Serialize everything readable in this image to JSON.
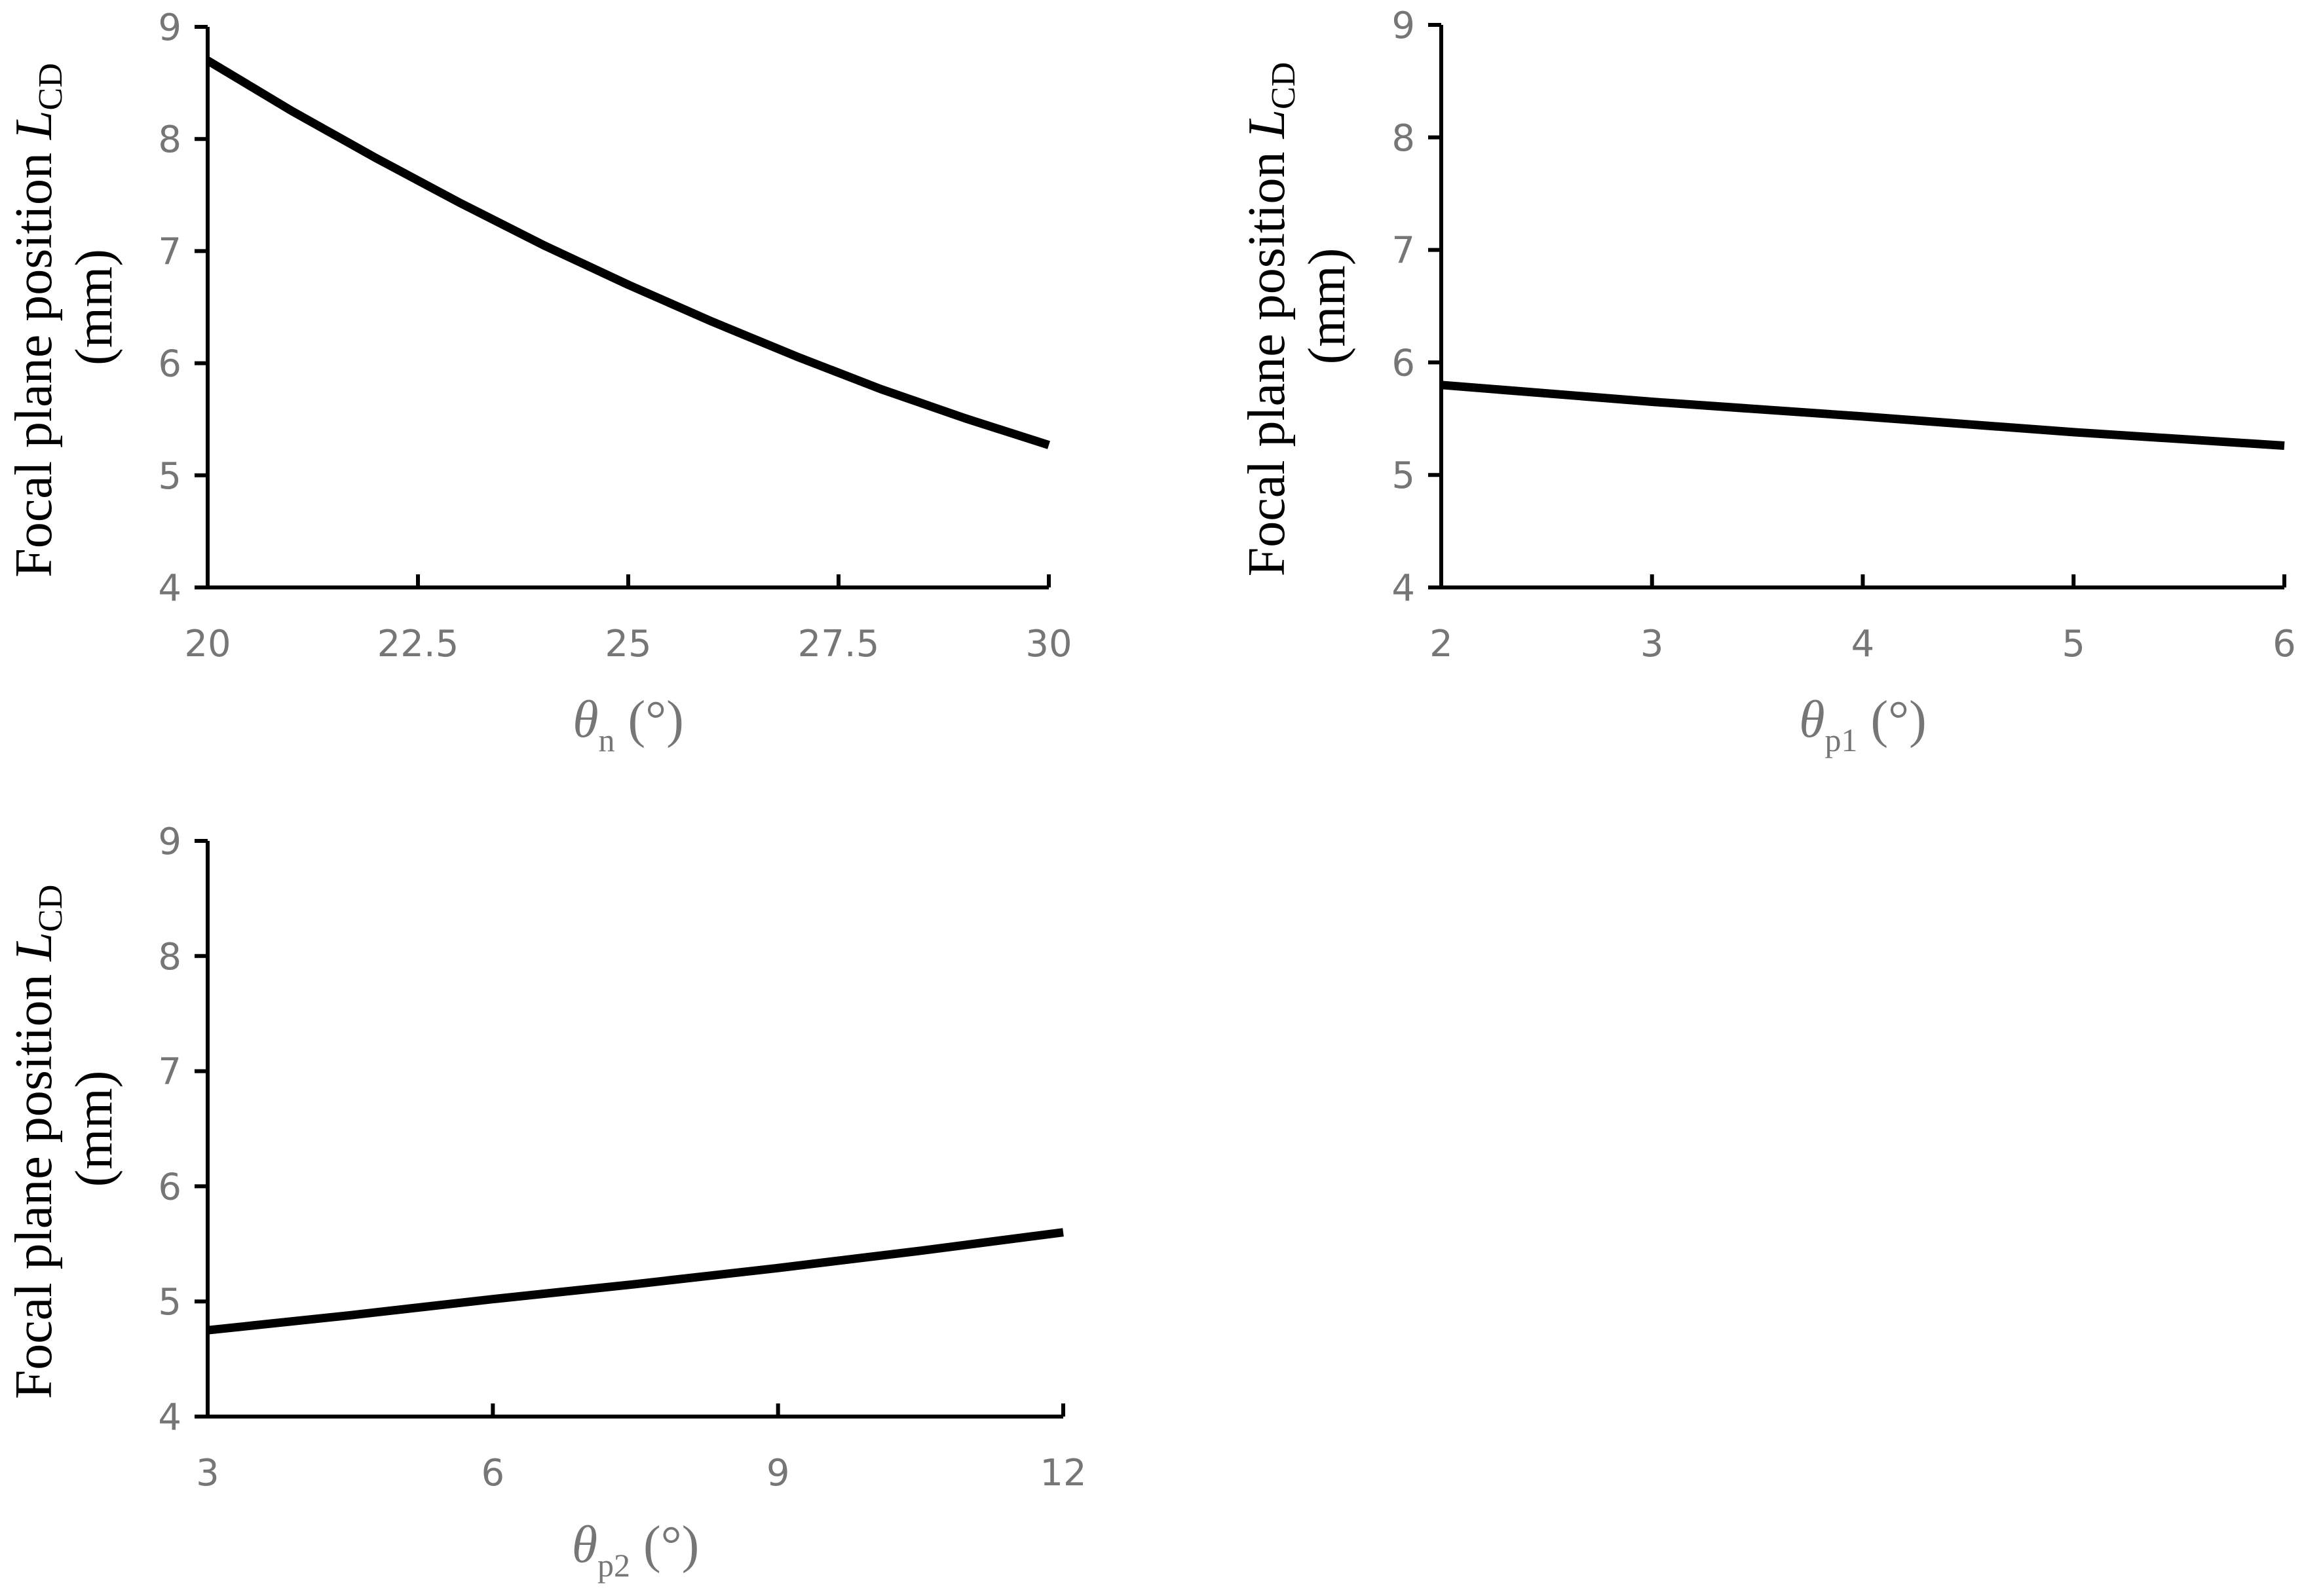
{
  "chart_data": [
    {
      "type": "line",
      "title": "",
      "xlabel": {
        "symbol": "θ",
        "subscript": "n",
        "unit": " (°)"
      },
      "ylabel": {
        "line1_prefix": "Focal plane position ",
        "line1_symbol": "L",
        "line1_subscript": "CD",
        "line2": "(mm)"
      },
      "xlim": [
        20,
        30
      ],
      "ylim": [
        4,
        9
      ],
      "x_ticks": [
        "20",
        "22.5",
        "25",
        "27.5",
        "30"
      ],
      "y_ticks": [
        "4",
        "5",
        "6",
        "7",
        "8",
        "9"
      ],
      "grid": false,
      "legend": "none",
      "series": [
        {
          "color": "#000000",
          "x": [
            20,
            21,
            22,
            23,
            24,
            25,
            26,
            27,
            28,
            29,
            30
          ],
          "y": [
            8.7,
            8.25,
            7.83,
            7.43,
            7.05,
            6.7,
            6.37,
            6.06,
            5.77,
            5.51,
            5.27
          ]
        }
      ]
    },
    {
      "type": "line",
      "title": "",
      "xlabel": {
        "symbol": "θ",
        "subscript": "p1",
        "unit": " (°)"
      },
      "ylabel": {
        "line1_prefix": "Focal plane position ",
        "line1_symbol": "L",
        "line1_subscript": "CD",
        "line2": "(mm)"
      },
      "xlim": [
        2,
        6
      ],
      "ylim": [
        4,
        9
      ],
      "x_ticks": [
        "2",
        "3",
        "4",
        "5",
        "6"
      ],
      "y_ticks": [
        "4",
        "5",
        "6",
        "7",
        "8",
        "9"
      ],
      "grid": false,
      "legend": "none",
      "series": [
        {
          "color": "#000000",
          "x": [
            2,
            3,
            4,
            5,
            6
          ],
          "y": [
            5.8,
            5.65,
            5.52,
            5.38,
            5.26
          ]
        }
      ]
    },
    {
      "type": "line",
      "title": "",
      "xlabel": {
        "symbol": "θ",
        "subscript": "p2",
        "unit": " (°)"
      },
      "ylabel": {
        "line1_prefix": "Focal plane position ",
        "line1_symbol": "L",
        "line1_subscript": "CD",
        "line2": "(mm)"
      },
      "xlim": [
        3,
        12
      ],
      "ylim": [
        4,
        9
      ],
      "x_ticks": [
        "3",
        "6",
        "9",
        "12"
      ],
      "y_ticks": [
        "4",
        "5",
        "6",
        "7",
        "8",
        "9"
      ],
      "grid": false,
      "legend": "none",
      "series": [
        {
          "color": "#000000",
          "x": [
            3,
            4.5,
            6,
            7.5,
            9,
            10.5,
            12
          ],
          "y": [
            4.75,
            4.88,
            5.02,
            5.15,
            5.29,
            5.44,
            5.6
          ]
        }
      ]
    }
  ]
}
